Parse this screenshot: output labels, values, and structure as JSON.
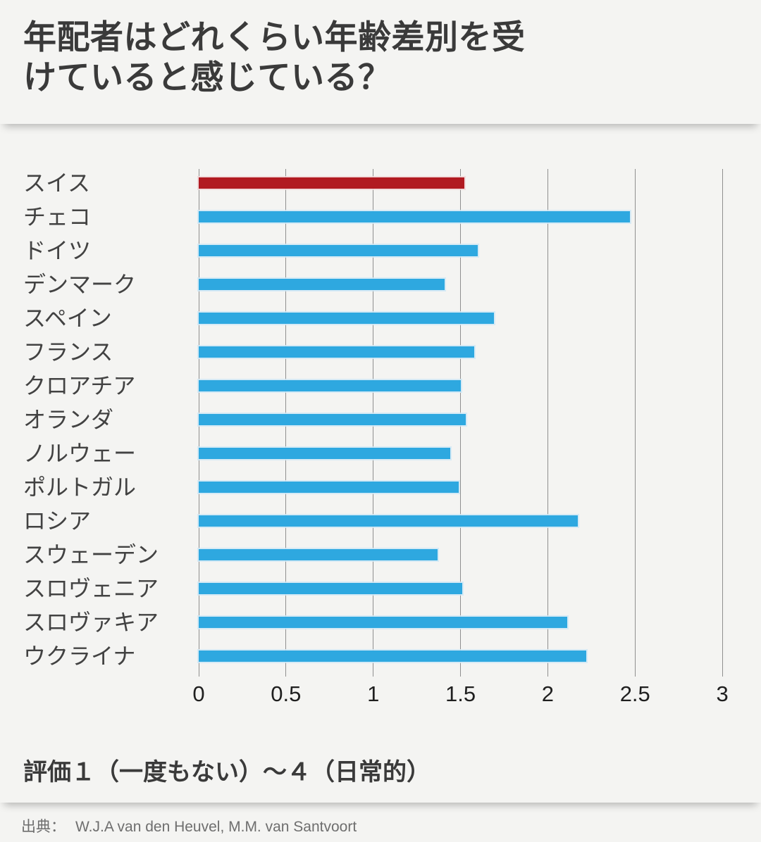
{
  "header": {
    "title_lines": [
      "年配者はどれくらい年齢差別を受",
      "けていると感じている？"
    ]
  },
  "chart_data": {
    "type": "bar",
    "orientation": "horizontal",
    "title": "年配者はどれくらい年齢差別を受けていると感じている？",
    "categories": [
      "スイス",
      "チェコ",
      "ドイツ",
      "デンマーク",
      "スペイン",
      "フランス",
      "クロアチア",
      "オランダ",
      "ノルウェー",
      "ポルトガル",
      "ロシア",
      "スウェーデン",
      "スロヴェニア",
      "スロヴァキア",
      "ウクライナ"
    ],
    "values": [
      1.52,
      2.47,
      1.6,
      1.41,
      1.69,
      1.58,
      1.5,
      1.53,
      1.44,
      1.49,
      2.17,
      1.37,
      1.51,
      2.11,
      2.22
    ],
    "highlight_index": 0,
    "bar_color": "#2ea8e0",
    "highlight_color": "#b11a21",
    "gridline_color": "#8f8f8f",
    "background_color": "#f4f4f2",
    "xlim": [
      0,
      3
    ],
    "x_ticks": [
      0,
      0.5,
      1,
      1.5,
      2,
      2.5,
      3
    ],
    "x_tick_labels": [
      "0",
      "0.5",
      "1",
      "1.5",
      "2",
      "2.5",
      "3"
    ],
    "grid": true,
    "legend": false,
    "xlabel": "",
    "ylabel": ""
  },
  "footnote": {
    "scale_note": "評価１（一度もない）～４（日常的）"
  },
  "footer": {
    "source_label": "出典：",
    "source_text": "W.J.A van den Heuvel, M.M. van Santvoort"
  }
}
